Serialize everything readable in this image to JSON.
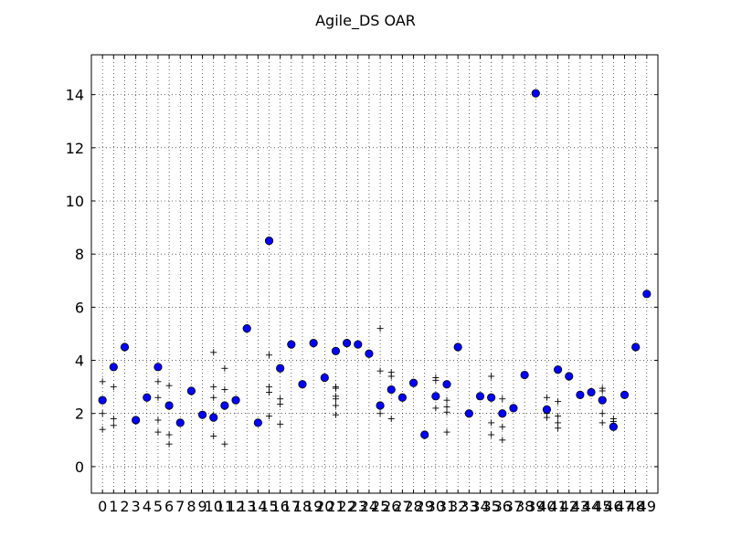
{
  "chart_data": {
    "type": "scatter",
    "title": "Agile_DS OAR",
    "xlabel": "",
    "ylabel": "",
    "xlim": [
      -1,
      50
    ],
    "ylim": [
      -1,
      15.5
    ],
    "grid": true,
    "x_ticks": [
      "0",
      "1",
      "2",
      "3",
      "4",
      "5",
      "6",
      "7",
      "8",
      "9",
      "10",
      "11",
      "12",
      "13",
      "14",
      "15",
      "16",
      "17",
      "18",
      "19",
      "20",
      "21",
      "22",
      "23",
      "24",
      "25",
      "26",
      "27",
      "28",
      "29",
      "30",
      "31",
      "32",
      "33",
      "34",
      "35",
      "36",
      "37",
      "38",
      "39",
      "40",
      "41",
      "42",
      "43",
      "44",
      "45",
      "46",
      "47",
      "48",
      "49"
    ],
    "y_ticks": [
      "0",
      "2",
      "4",
      "6",
      "8",
      "10",
      "12",
      "14"
    ],
    "series": [
      {
        "marker": "circle",
        "color": "#0000ff",
        "x": [
          0,
          1,
          2,
          3,
          4,
          5,
          6,
          7,
          8,
          9,
          10,
          11,
          12,
          13,
          14,
          15,
          16,
          17,
          18,
          19,
          20,
          21,
          22,
          23,
          24,
          25,
          26,
          27,
          28,
          29,
          30,
          31,
          32,
          33,
          34,
          35,
          36,
          37,
          38,
          39,
          40,
          41,
          42,
          43,
          44,
          45,
          46,
          47,
          48,
          49
        ],
        "y": [
          2.5,
          3.75,
          4.5,
          1.75,
          2.6,
          3.75,
          2.3,
          1.65,
          2.85,
          1.95,
          1.85,
          2.3,
          2.5,
          5.2,
          1.65,
          8.5,
          3.7,
          4.6,
          3.1,
          4.65,
          3.35,
          4.35,
          4.65,
          4.6,
          4.25,
          2.3,
          2.9,
          2.6,
          3.15,
          1.2,
          2.65,
          3.1,
          4.5,
          2.0,
          2.65,
          2.6,
          2.0,
          2.2,
          3.45,
          14.05,
          2.15,
          3.65,
          3.4,
          2.7,
          2.8,
          2.5,
          1.5,
          2.7,
          4.5,
          6.5
        ]
      },
      {
        "marker": "plus",
        "color": "#000000",
        "x": [
          0,
          0,
          0,
          1,
          1,
          1,
          5,
          5,
          5,
          5,
          6,
          6,
          6,
          6,
          10,
          10,
          10,
          10,
          10,
          11,
          11,
          11,
          11,
          15,
          15,
          15,
          15,
          16,
          16,
          16,
          21,
          21,
          21,
          21,
          21,
          21,
          25,
          25,
          25,
          26,
          26,
          26,
          30,
          30,
          30,
          31,
          31,
          31,
          31,
          35,
          35,
          35,
          36,
          36,
          36,
          40,
          40,
          40,
          41,
          41,
          41,
          41,
          45,
          45,
          45,
          45,
          46,
          46
        ],
        "y": [
          3.2,
          2.0,
          1.4,
          3.0,
          1.8,
          1.55,
          3.2,
          2.6,
          1.75,
          1.3,
          3.05,
          2.3,
          1.2,
          0.85,
          4.3,
          3.0,
          2.6,
          1.95,
          1.15,
          3.7,
          2.9,
          2.25,
          0.85,
          4.2,
          3.0,
          2.8,
          1.9,
          2.55,
          2.35,
          1.6,
          3.0,
          2.95,
          2.65,
          2.55,
          2.3,
          1.95,
          5.2,
          3.6,
          2.0,
          3.55,
          3.4,
          1.8,
          3.35,
          3.25,
          2.2,
          2.5,
          2.25,
          2.05,
          1.3,
          3.4,
          1.65,
          1.2,
          2.55,
          1.5,
          1.0,
          2.6,
          2.0,
          1.85,
          2.45,
          1.9,
          1.65,
          1.45,
          2.95,
          2.85,
          2.0,
          1.65,
          1.8,
          1.7
        ]
      }
    ]
  }
}
